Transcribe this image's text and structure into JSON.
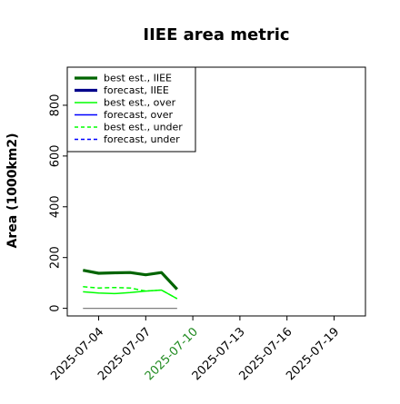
{
  "chart_data": {
    "type": "line",
    "title": "IIEE area metric",
    "ylabel": "Area (1000km2)",
    "xlabel": "",
    "xlim": [
      "2025-07-02",
      "2025-07-21"
    ],
    "ylim": [
      -30,
      950
    ],
    "grid": false,
    "legend_position": "top-left",
    "yticks": [
      0,
      200,
      400,
      600,
      800
    ],
    "xticks": [
      "2025-07-04",
      "2025-07-07",
      "2025-07-10",
      "2025-07-13",
      "2025-07-16",
      "2025-07-19"
    ],
    "highlighted_xtick": "2025-07-10",
    "highlight_color": "#228b22",
    "x": [
      "2025-07-03",
      "2025-07-04",
      "2025-07-05",
      "2025-07-06",
      "2025-07-07",
      "2025-07-08",
      "2025-07-09"
    ],
    "series": [
      {
        "name": "best est., IIEE",
        "color": "#006400",
        "dash": "solid",
        "width": "thick",
        "values": [
          150,
          138,
          140,
          141,
          132,
          141,
          75
        ]
      },
      {
        "name": "forecast, IIEE",
        "color": "#00008b",
        "dash": "solid",
        "width": "thick",
        "values": [
          null,
          null,
          null,
          null,
          null,
          null,
          null
        ]
      },
      {
        "name": "best est., over",
        "color": "#00ff00",
        "dash": "solid",
        "width": "thin",
        "values": [
          65,
          60,
          58,
          62,
          68,
          72,
          38
        ]
      },
      {
        "name": "forecast, over",
        "color": "#0000ff",
        "dash": "solid",
        "width": "thin",
        "values": [
          null,
          null,
          null,
          null,
          null,
          null,
          null
        ]
      },
      {
        "name": "best est., under",
        "color": "#00ff00",
        "dash": "dashed",
        "width": "thin",
        "values": [
          85,
          80,
          82,
          80,
          68,
          72,
          38
        ]
      },
      {
        "name": "forecast, under",
        "color": "#0000ff",
        "dash": "dashed",
        "width": "thin",
        "values": [
          null,
          null,
          null,
          null,
          null,
          null,
          null
        ]
      }
    ],
    "reference_line": {
      "value": 0,
      "from": "2025-07-03",
      "to": "2025-07-09",
      "color": "#808080"
    }
  }
}
